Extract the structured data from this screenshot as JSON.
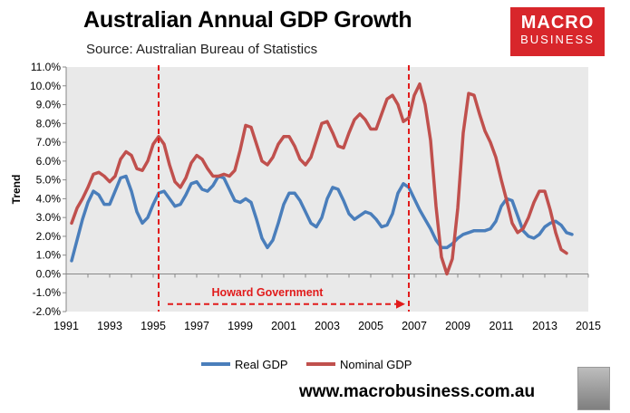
{
  "title": "Australian Annual GDP Growth",
  "subtitle": "Source: Australian Bureau of Statistics",
  "logo": {
    "line1": "MACRO",
    "line2": "BUSINESS"
  },
  "website": "www.macrobusiness.com.au",
  "colors": {
    "real": "#4a7ebb",
    "nominal": "#c0504d",
    "plot_bg": "#e9e9e9",
    "annotation": "#e11b1b"
  },
  "chart_data": {
    "type": "line",
    "title": "Australian Annual GDP Growth",
    "ylabel": "Trend",
    "xlabel": "",
    "xlim": [
      1991,
      2015
    ],
    "ylim": [
      -2.0,
      11.0
    ],
    "x_ticks": [
      "1991",
      "1993",
      "1995",
      "1997",
      "1999",
      "2001",
      "2003",
      "2005",
      "2007",
      "2009",
      "2011",
      "2013",
      "2015"
    ],
    "y_ticks": [
      "11.0%",
      "10.0%",
      "9.0%",
      "8.0%",
      "7.0%",
      "6.0%",
      "5.0%",
      "4.0%",
      "3.0%",
      "2.0%",
      "1.0%",
      "0.0%",
      "-1.0%",
      "-2.0%"
    ],
    "legend_position": "bottom",
    "grid": false,
    "series": [
      {
        "name": "Real GDP",
        "color": "#4a7ebb",
        "points": [
          [
            1991.25,
            0.7
          ],
          [
            1991.5,
            1.8
          ],
          [
            1991.75,
            2.9
          ],
          [
            1992.0,
            3.8
          ],
          [
            1992.25,
            4.4
          ],
          [
            1992.5,
            4.2
          ],
          [
            1992.75,
            3.7
          ],
          [
            1993.0,
            3.7
          ],
          [
            1993.25,
            4.4
          ],
          [
            1993.5,
            5.1
          ],
          [
            1993.75,
            5.2
          ],
          [
            1994.0,
            4.4
          ],
          [
            1994.25,
            3.3
          ],
          [
            1994.5,
            2.7
          ],
          [
            1994.75,
            3.0
          ],
          [
            1995.0,
            3.7
          ],
          [
            1995.25,
            4.3
          ],
          [
            1995.5,
            4.4
          ],
          [
            1995.75,
            4.0
          ],
          [
            1996.0,
            3.6
          ],
          [
            1996.25,
            3.7
          ],
          [
            1996.5,
            4.2
          ],
          [
            1996.75,
            4.8
          ],
          [
            1997.0,
            4.9
          ],
          [
            1997.25,
            4.5
          ],
          [
            1997.5,
            4.4
          ],
          [
            1997.75,
            4.7
          ],
          [
            1998.0,
            5.2
          ],
          [
            1998.25,
            5.1
          ],
          [
            1998.5,
            4.5
          ],
          [
            1998.75,
            3.9
          ],
          [
            1999.0,
            3.8
          ],
          [
            1999.25,
            4.0
          ],
          [
            1999.5,
            3.8
          ],
          [
            1999.75,
            2.9
          ],
          [
            2000.0,
            1.9
          ],
          [
            2000.25,
            1.4
          ],
          [
            2000.5,
            1.8
          ],
          [
            2000.75,
            2.7
          ],
          [
            2001.0,
            3.7
          ],
          [
            2001.25,
            4.3
          ],
          [
            2001.5,
            4.3
          ],
          [
            2001.75,
            3.9
          ],
          [
            2002.0,
            3.3
          ],
          [
            2002.25,
            2.7
          ],
          [
            2002.5,
            2.5
          ],
          [
            2002.75,
            3.0
          ],
          [
            2003.0,
            4.0
          ],
          [
            2003.25,
            4.6
          ],
          [
            2003.5,
            4.5
          ],
          [
            2003.75,
            3.9
          ],
          [
            2004.0,
            3.2
          ],
          [
            2004.25,
            2.9
          ],
          [
            2004.5,
            3.1
          ],
          [
            2004.75,
            3.3
          ],
          [
            2005.0,
            3.2
          ],
          [
            2005.25,
            2.9
          ],
          [
            2005.5,
            2.5
          ],
          [
            2005.75,
            2.6
          ],
          [
            2006.0,
            3.2
          ],
          [
            2006.25,
            4.3
          ],
          [
            2006.5,
            4.8
          ],
          [
            2006.75,
            4.6
          ],
          [
            2007.0,
            4.0
          ],
          [
            2007.25,
            3.4
          ],
          [
            2007.5,
            2.9
          ],
          [
            2007.75,
            2.4
          ],
          [
            2008.0,
            1.8
          ],
          [
            2008.25,
            1.4
          ],
          [
            2008.5,
            1.4
          ],
          [
            2008.75,
            1.6
          ],
          [
            2009.0,
            1.9
          ],
          [
            2009.25,
            2.1
          ],
          [
            2009.5,
            2.2
          ],
          [
            2009.75,
            2.3
          ],
          [
            2010.0,
            2.3
          ],
          [
            2010.25,
            2.3
          ],
          [
            2010.5,
            2.4
          ],
          [
            2010.75,
            2.8
          ],
          [
            2011.0,
            3.6
          ],
          [
            2011.25,
            4.0
          ],
          [
            2011.5,
            3.9
          ],
          [
            2011.75,
            3.1
          ],
          [
            2012.0,
            2.3
          ],
          [
            2012.25,
            2.0
          ],
          [
            2012.5,
            1.9
          ],
          [
            2012.75,
            2.1
          ],
          [
            2013.0,
            2.5
          ],
          [
            2013.25,
            2.7
          ],
          [
            2013.5,
            2.8
          ],
          [
            2013.75,
            2.6
          ],
          [
            2014.0,
            2.2
          ],
          [
            2014.25,
            2.1
          ]
        ]
      },
      {
        "name": "Nominal GDP",
        "color": "#c0504d",
        "points": [
          [
            1991.25,
            2.7
          ],
          [
            1991.5,
            3.5
          ],
          [
            1991.75,
            4.0
          ],
          [
            1992.0,
            4.6
          ],
          [
            1992.25,
            5.3
          ],
          [
            1992.5,
            5.4
          ],
          [
            1992.75,
            5.2
          ],
          [
            1993.0,
            4.9
          ],
          [
            1993.25,
            5.2
          ],
          [
            1993.5,
            6.1
          ],
          [
            1993.75,
            6.5
          ],
          [
            1994.0,
            6.3
          ],
          [
            1994.25,
            5.6
          ],
          [
            1994.5,
            5.5
          ],
          [
            1994.75,
            6.0
          ],
          [
            1995.0,
            6.9
          ],
          [
            1995.25,
            7.3
          ],
          [
            1995.5,
            6.9
          ],
          [
            1995.75,
            5.8
          ],
          [
            1996.0,
            4.9
          ],
          [
            1996.25,
            4.6
          ],
          [
            1996.5,
            5.1
          ],
          [
            1996.75,
            5.9
          ],
          [
            1997.0,
            6.3
          ],
          [
            1997.25,
            6.1
          ],
          [
            1997.5,
            5.6
          ],
          [
            1997.75,
            5.2
          ],
          [
            1998.0,
            5.2
          ],
          [
            1998.25,
            5.3
          ],
          [
            1998.5,
            5.2
          ],
          [
            1998.75,
            5.5
          ],
          [
            1999.0,
            6.6
          ],
          [
            1999.25,
            7.9
          ],
          [
            1999.5,
            7.8
          ],
          [
            1999.75,
            6.9
          ],
          [
            2000.0,
            6.0
          ],
          [
            2000.25,
            5.8
          ],
          [
            2000.5,
            6.2
          ],
          [
            2000.75,
            6.9
          ],
          [
            2001.0,
            7.3
          ],
          [
            2001.25,
            7.3
          ],
          [
            2001.5,
            6.8
          ],
          [
            2001.75,
            6.1
          ],
          [
            2002.0,
            5.8
          ],
          [
            2002.25,
            6.2
          ],
          [
            2002.5,
            7.1
          ],
          [
            2002.75,
            8.0
          ],
          [
            2003.0,
            8.1
          ],
          [
            2003.25,
            7.5
          ],
          [
            2003.5,
            6.8
          ],
          [
            2003.75,
            6.7
          ],
          [
            2004.0,
            7.5
          ],
          [
            2004.25,
            8.2
          ],
          [
            2004.5,
            8.5
          ],
          [
            2004.75,
            8.2
          ],
          [
            2005.0,
            7.7
          ],
          [
            2005.25,
            7.7
          ],
          [
            2005.5,
            8.5
          ],
          [
            2005.75,
            9.3
          ],
          [
            2006.0,
            9.5
          ],
          [
            2006.25,
            9.0
          ],
          [
            2006.5,
            8.1
          ],
          [
            2006.75,
            8.3
          ],
          [
            2007.0,
            9.5
          ],
          [
            2007.25,
            10.1
          ],
          [
            2007.5,
            9.0
          ],
          [
            2007.75,
            7.1
          ],
          [
            2008.0,
            3.6
          ],
          [
            2008.25,
            0.9
          ],
          [
            2008.5,
            0.0
          ],
          [
            2008.75,
            0.8
          ],
          [
            2009.0,
            3.5
          ],
          [
            2009.25,
            7.5
          ],
          [
            2009.5,
            9.6
          ],
          [
            2009.75,
            9.5
          ],
          [
            2010.0,
            8.5
          ],
          [
            2010.25,
            7.6
          ],
          [
            2010.5,
            7.0
          ],
          [
            2010.75,
            6.2
          ],
          [
            2011.0,
            5.0
          ],
          [
            2011.25,
            3.9
          ],
          [
            2011.5,
            2.7
          ],
          [
            2011.75,
            2.2
          ],
          [
            2012.0,
            2.4
          ],
          [
            2012.25,
            3.0
          ],
          [
            2012.5,
            3.8
          ],
          [
            2012.75,
            4.4
          ],
          [
            2013.0,
            4.4
          ],
          [
            2013.25,
            3.4
          ],
          [
            2013.5,
            2.2
          ],
          [
            2013.75,
            1.3
          ],
          [
            2014.0,
            1.1
          ]
        ]
      }
    ],
    "annotations": {
      "label": "Howard Government",
      "start_x": 1995.25,
      "end_x": 2006.75
    }
  }
}
